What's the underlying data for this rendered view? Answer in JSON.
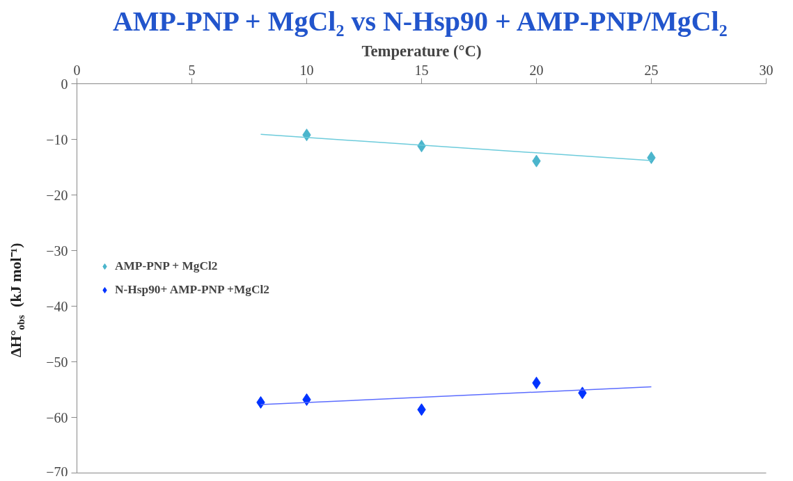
{
  "chart_data": {
    "type": "scatter",
    "title": "AMP-PNP + MgCl₂ vs N-Hsp90 + AMP-PNP/MgCl₂",
    "xlabel": "Temperature (°C)",
    "ylabel": "ΔH°$_{obs}$ (kJ mol⁻¹)",
    "xlim": [
      0,
      30
    ],
    "xticks": [
      0,
      5,
      10,
      15,
      20,
      25,
      30
    ],
    "ylim": [
      -70,
      0
    ],
    "yticks": [
      -70,
      -60,
      -50,
      -40,
      -30,
      -20,
      -10,
      0
    ],
    "marker": "diamond",
    "grid": false,
    "legend": "left",
    "series": [
      {
        "name": "AMP-PNP + MgCl2",
        "color": "#4bb5cc",
        "x": [
          10,
          15,
          20,
          25
        ],
        "values": [
          -9.2,
          -11.2,
          -13.9,
          -13.3
        ]
      },
      {
        "name": "N-Hsp90+ AMP-PNP +MgCl2",
        "color": "#0033ff",
        "x": [
          8,
          10,
          15,
          20,
          22
        ],
        "values": [
          -57.3,
          -56.8,
          -58.6,
          -53.8,
          -55.6
        ]
      },
      {
        "type": "line",
        "marker": "none",
        "color": "#6ccbdb",
        "x": [
          8,
          25
        ],
        "values": [
          -9.1,
          -13.8
        ]
      },
      {
        "type": "line",
        "marker": "none",
        "color": "#5b6cff",
        "x": [
          8,
          25
        ],
        "values": [
          -57.7,
          -54.5
        ]
      }
    ]
  }
}
